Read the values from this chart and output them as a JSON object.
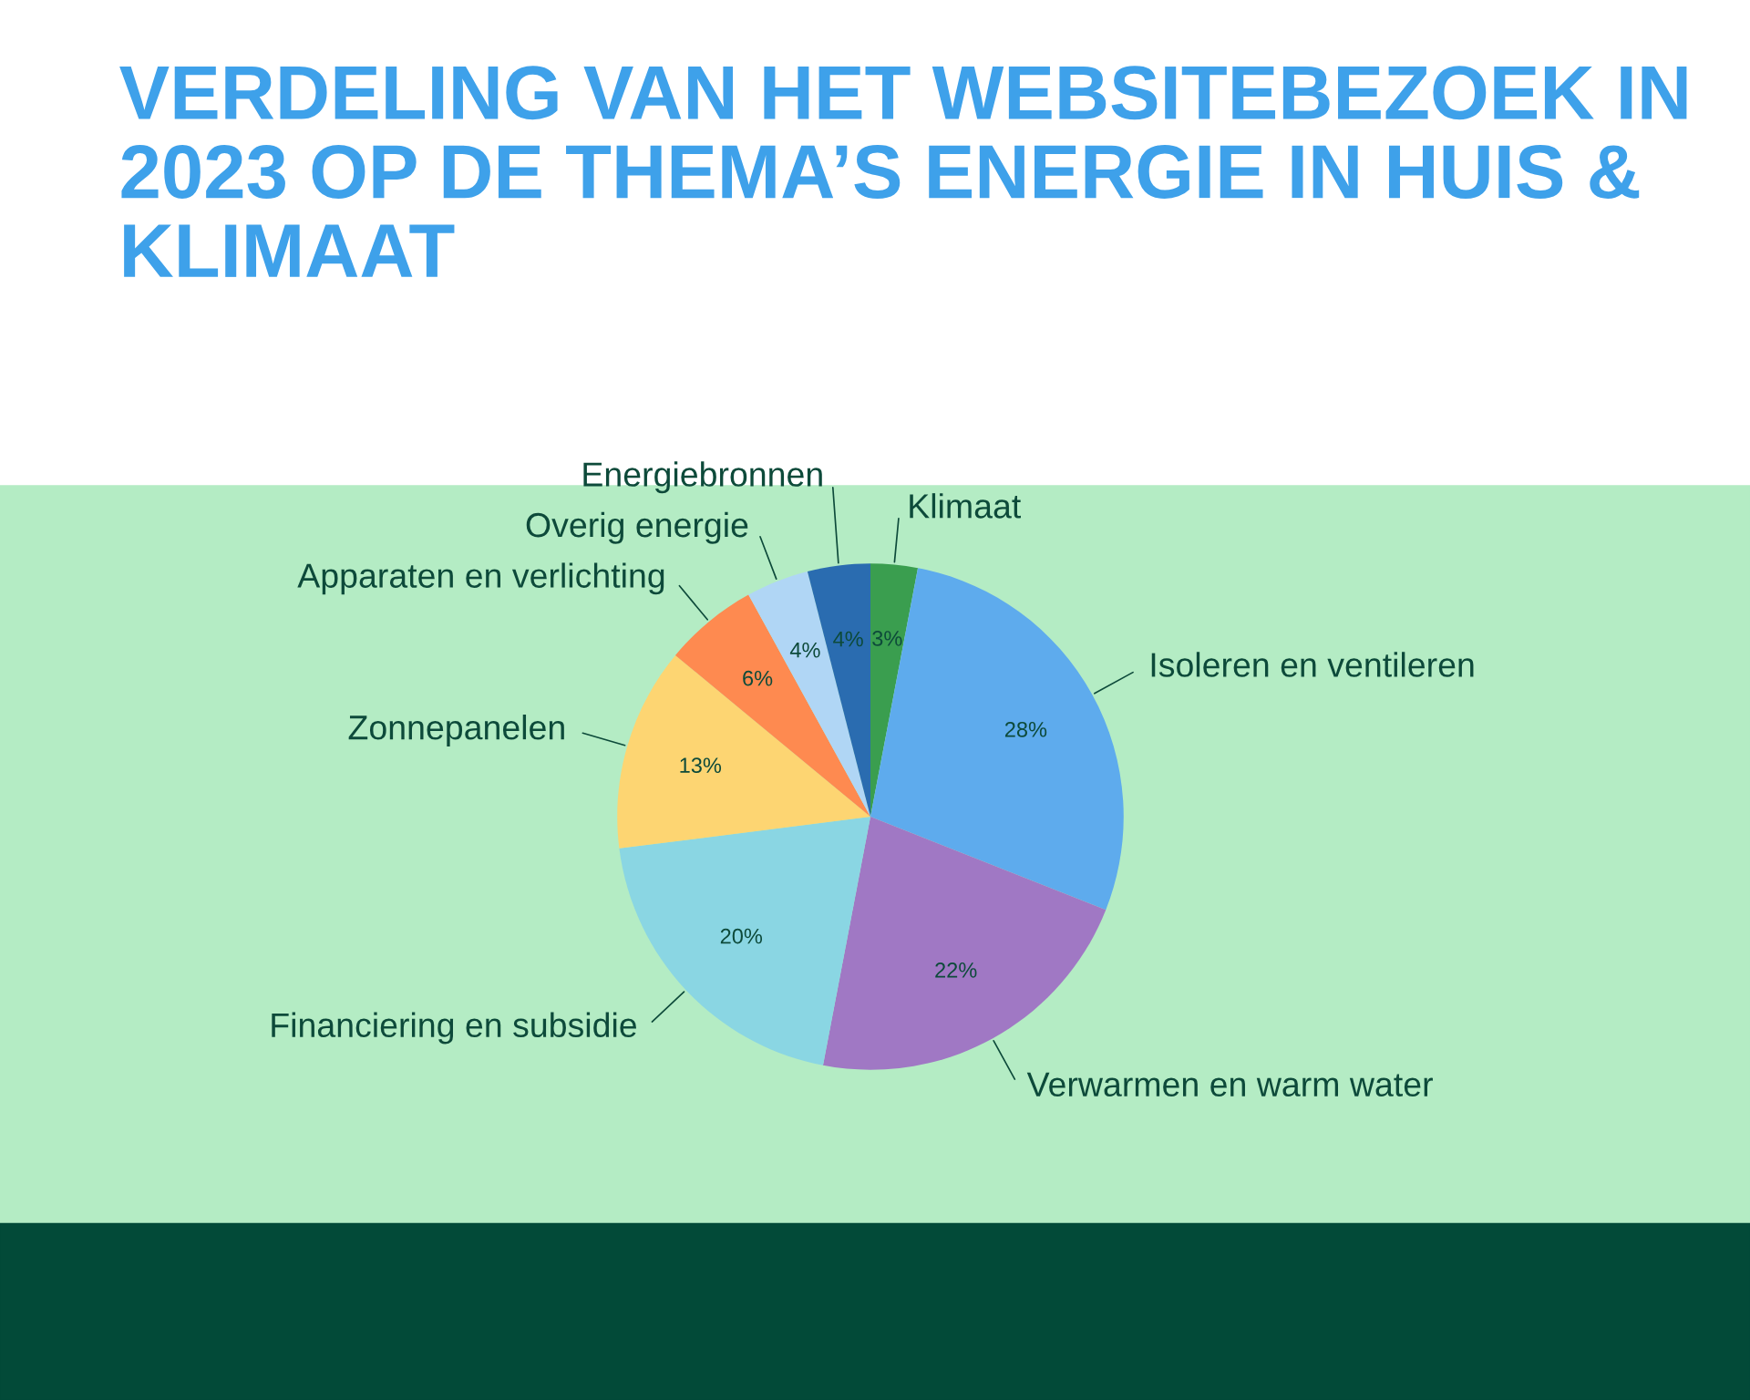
{
  "chart_data": {
    "type": "pie",
    "title": "VERDELING VAN HET WEBSITEBEZOEK IN 2023 OP DE THEMA’S ENERGIE IN HUIS & KLIMAAT",
    "categories": [
      "Klimaat",
      "Isoleren en ventileren",
      "Verwarmen en warm water",
      "Financiering en subsidie",
      "Zonnepanelen",
      "Apparaten en verlichting",
      "Overig energie",
      "Energiebronnen"
    ],
    "values": [
      3,
      28,
      22,
      20,
      13,
      6,
      4,
      4
    ],
    "colors": [
      "#3a9e4f",
      "#5eabed",
      "#a078c4",
      "#8ad6e3",
      "#fdd572",
      "#fe8a50",
      "#b0d6f5",
      "#2a6cb0"
    ],
    "value_labels": [
      "3%",
      "28%",
      "22%",
      "20%",
      "13%",
      "6%",
      "4%",
      "4%"
    ]
  }
}
